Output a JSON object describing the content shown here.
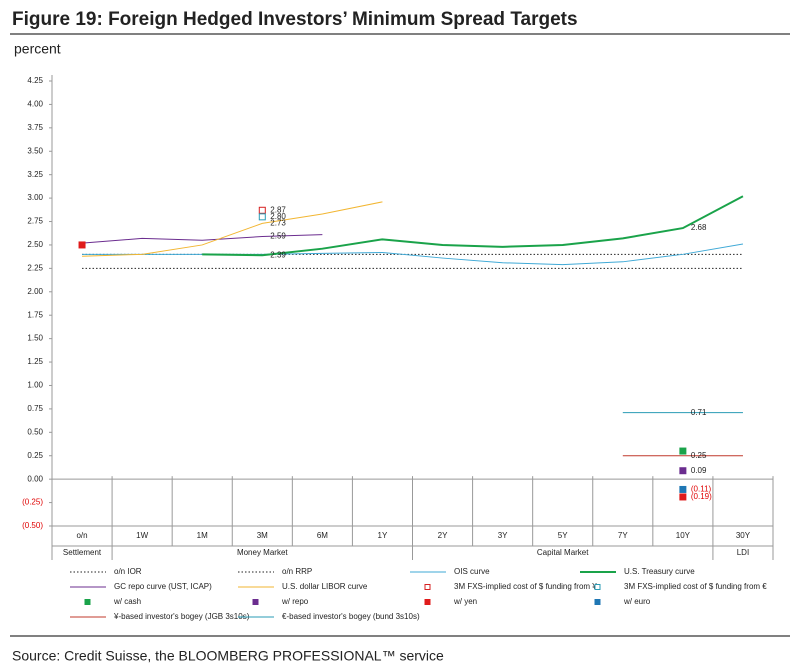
{
  "chart_data": {
    "type": "line",
    "title": "Figure 19: Foreign Hedged Investors’ Minimum Spread Targets",
    "y_label": "percent",
    "source": "Source: Credit Suisse, the BLOOMBERG PROFESSIONAL™ service",
    "categories": [
      "o/n",
      "1W",
      "1M",
      "3M",
      "6M",
      "1Y",
      "2Y",
      "3Y",
      "5Y",
      "7Y",
      "10Y",
      "30Y"
    ],
    "groups": [
      {
        "name": "Settlement",
        "span": [
          0,
          0
        ]
      },
      {
        "name": "Money Market",
        "span": [
          1,
          5
        ]
      },
      {
        "name": "Capital Market",
        "span": [
          6,
          10
        ]
      },
      {
        "name": "LDI",
        "span": [
          11,
          11
        ]
      }
    ],
    "ylim": [
      -0.5,
      4.25
    ],
    "yticks": [
      {
        "value": -0.5,
        "label": "(0.50)"
      },
      {
        "value": -0.25,
        "label": "(0.25)"
      },
      {
        "value": 0,
        "label": "0.00"
      },
      0.25,
      {
        "value": 0.5,
        "label": "0.50"
      },
      0.75,
      {
        "value": 1,
        "label": "1.00"
      },
      1.25,
      {
        "value": 1.5,
        "label": "1.50"
      },
      1.75,
      {
        "value": 2,
        "label": "2.00"
      },
      2.25,
      {
        "value": 2.5,
        "label": "2.50"
      },
      2.75,
      {
        "value": 3,
        "label": "3.00"
      },
      3.25,
      {
        "value": 3.5,
        "label": "3.50"
      },
      3.75,
      {
        "value": 4,
        "label": "4.00"
      },
      4.25
    ],
    "negative_tick_color": "#e00000",
    "series": [
      {
        "name": "o/n IOR",
        "color": "#222222",
        "kind": "line",
        "dash": "dotted",
        "values": [
          2.4,
          2.4,
          2.4,
          2.4,
          2.4,
          2.4,
          2.4,
          2.4,
          2.4,
          2.4,
          2.4,
          2.4
        ]
      },
      {
        "name": "o/n RRP",
        "color": "#222222",
        "kind": "line",
        "dash": "dotted",
        "values": [
          2.25,
          2.25,
          2.25,
          2.25,
          2.25,
          2.25,
          2.25,
          2.25,
          2.25,
          2.25,
          2.25,
          2.25
        ]
      },
      {
        "name": "OIS curve",
        "color": "#3fa9d6",
        "kind": "line",
        "values": [
          2.4,
          2.4,
          2.4,
          2.4,
          2.41,
          2.42,
          2.36,
          2.31,
          2.29,
          2.32,
          2.4,
          2.51
        ]
      },
      {
        "name": "U.S. Treasury curve",
        "color": "#1aa34a",
        "kind": "line",
        "width": 2,
        "values": [
          null,
          null,
          2.4,
          2.39,
          2.46,
          2.56,
          2.5,
          2.48,
          2.5,
          2.57,
          2.68,
          3.02
        ],
        "value_labels": [
          null,
          null,
          null,
          "2.39",
          null,
          null,
          null,
          null,
          null,
          null,
          "2.68",
          null
        ]
      },
      {
        "name": "GC repo curve (UST, ICAP)",
        "color": "#6b2d8f",
        "kind": "line",
        "values": [
          2.52,
          2.57,
          2.55,
          2.59,
          2.61,
          null,
          null,
          null,
          null,
          null,
          null,
          null
        ],
        "value_labels": [
          null,
          null,
          null,
          "2.59",
          null,
          null,
          null,
          null,
          null,
          null,
          null,
          null
        ]
      },
      {
        "name": "U.S. dollar LIBOR curve",
        "color": "#f2b632",
        "kind": "line",
        "values": [
          2.38,
          2.4,
          2.5,
          2.73,
          2.83,
          2.96,
          null,
          null,
          null,
          null,
          null,
          null
        ],
        "value_labels": [
          null,
          null,
          null,
          "2.73",
          null,
          null,
          null,
          null,
          null,
          null,
          null,
          null
        ]
      },
      {
        "name": "3M FXS-implied cost of $ funding from ¥",
        "color": "#d62020",
        "kind": "marker",
        "marker": "hollow",
        "values": [
          null,
          null,
          null,
          2.87,
          null,
          null,
          null,
          null,
          null,
          null,
          null,
          null
        ],
        "value_labels": [
          null,
          null,
          null,
          "2.87",
          null,
          null,
          null,
          null,
          null,
          null,
          null,
          null
        ]
      },
      {
        "name": "3M FXS-implied cost of $ funding from €",
        "color": "#2a9bb5",
        "kind": "marker",
        "marker": "hollow",
        "values": [
          null,
          null,
          null,
          2.8,
          null,
          null,
          null,
          null,
          null,
          null,
          null,
          null
        ],
        "value_labels": [
          null,
          null,
          null,
          "2.80",
          null,
          null,
          null,
          null,
          null,
          null,
          null,
          null
        ]
      },
      {
        "name": "w/ cash",
        "color": "#1aa34a",
        "kind": "marker",
        "marker": "filled",
        "values": [
          null,
          null,
          null,
          null,
          null,
          null,
          null,
          null,
          null,
          null,
          0.3,
          null
        ]
      },
      {
        "name": "w/ repo",
        "color": "#6b2d8f",
        "kind": "marker",
        "marker": "filled",
        "values": [
          null,
          null,
          null,
          null,
          null,
          null,
          null,
          null,
          null,
          null,
          0.09,
          null
        ],
        "value_labels": [
          null,
          null,
          null,
          null,
          null,
          null,
          null,
          null,
          null,
          null,
          "0.09",
          null
        ]
      },
      {
        "name": "w/ yen",
        "color": "#e01b1b",
        "kind": "marker",
        "marker": "filled",
        "values": [
          2.5,
          null,
          null,
          null,
          null,
          null,
          null,
          null,
          null,
          null,
          -0.19,
          null
        ],
        "value_labels": [
          null,
          null,
          null,
          null,
          null,
          null,
          null,
          null,
          null,
          null,
          "(0.19)",
          null
        ]
      },
      {
        "name": "w/ euro",
        "color": "#1f77b4",
        "kind": "marker",
        "marker": "filled",
        "values": [
          null,
          null,
          null,
          null,
          null,
          null,
          null,
          null,
          null,
          null,
          -0.11,
          null
        ],
        "value_labels": [
          null,
          null,
          null,
          null,
          null,
          null,
          null,
          null,
          null,
          null,
          "(0.11)",
          null
        ]
      },
      {
        "name": "¥-based investor's bogey (JGB 3s10s)",
        "color": "#c0392b",
        "kind": "line",
        "values": [
          null,
          null,
          null,
          null,
          null,
          null,
          null,
          null,
          null,
          0.25,
          0.25,
          0.25
        ],
        "value_labels": [
          null,
          null,
          null,
          null,
          null,
          null,
          null,
          null,
          null,
          null,
          "0.25",
          null
        ]
      },
      {
        "name": "€-based investor's bogey (bund 3s10s)",
        "color": "#2a9bb5",
        "kind": "line",
        "values": [
          null,
          null,
          null,
          null,
          null,
          null,
          null,
          null,
          null,
          0.71,
          0.71,
          0.71
        ],
        "value_labels": [
          null,
          null,
          null,
          null,
          null,
          null,
          null,
          null,
          null,
          null,
          "0.71",
          null
        ]
      }
    ]
  }
}
